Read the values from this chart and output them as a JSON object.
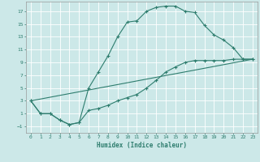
{
  "xlabel": "Humidex (Indice chaleur)",
  "bg_color": "#cce8e8",
  "grid_color": "#ffffff",
  "line_color": "#2e7d6e",
  "xlim": [
    -0.5,
    23.5
  ],
  "ylim": [
    -2,
    18.5
  ],
  "xticks": [
    0,
    1,
    2,
    3,
    4,
    5,
    6,
    7,
    8,
    9,
    10,
    11,
    12,
    13,
    14,
    15,
    16,
    17,
    18,
    19,
    20,
    21,
    22,
    23
  ],
  "yticks": [
    -1,
    1,
    3,
    5,
    7,
    9,
    11,
    13,
    15,
    17
  ],
  "line1_x": [
    0,
    1,
    2,
    3,
    4,
    5,
    6,
    7,
    8,
    9,
    10,
    11,
    12,
    13,
    14,
    15,
    16,
    17,
    18,
    19,
    20,
    21,
    22,
    23
  ],
  "line1_y": [
    3,
    1,
    1,
    0,
    -0.7,
    -0.4,
    5,
    7.5,
    10,
    13,
    15.3,
    15.5,
    17.0,
    17.6,
    17.8,
    17.8,
    17.0,
    16.8,
    14.8,
    13.3,
    12.5,
    11.3,
    9.5,
    9.5
  ],
  "line2_x": [
    0,
    1,
    2,
    3,
    4,
    5,
    6,
    7,
    8,
    9,
    10,
    11,
    12,
    13,
    14,
    15,
    16,
    17,
    18,
    19,
    20,
    21,
    22,
    23
  ],
  "line2_y": [
    3,
    1,
    1,
    0,
    -0.7,
    -0.4,
    1.5,
    1.8,
    2.3,
    3.0,
    3.5,
    4.0,
    5.0,
    6.2,
    7.5,
    8.3,
    9.0,
    9.3,
    9.3,
    9.3,
    9.3,
    9.5,
    9.5,
    9.5
  ],
  "line3_x": [
    0,
    23
  ],
  "line3_y": [
    3,
    9.5
  ]
}
